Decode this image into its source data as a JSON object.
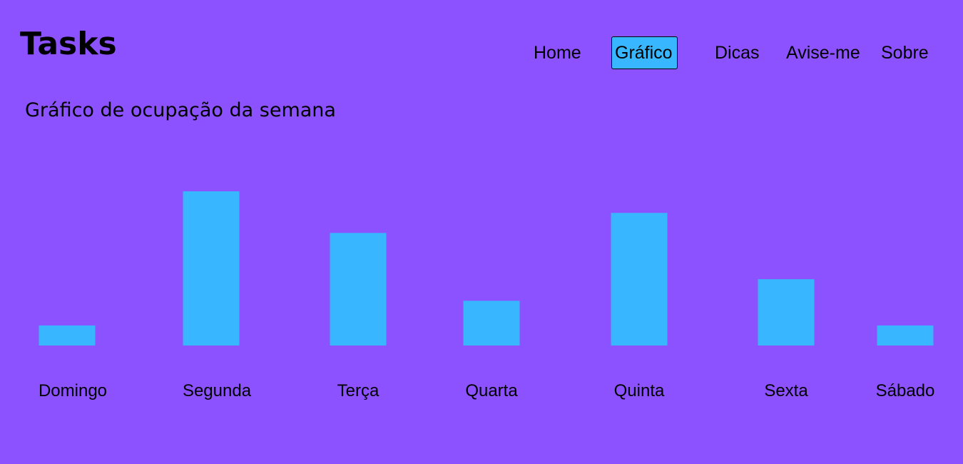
{
  "header": {
    "logo": "Tasks"
  },
  "nav": {
    "items": [
      {
        "label": "Home",
        "active": false
      },
      {
        "label": "Gráfico",
        "active": true
      },
      {
        "label": "Dicas",
        "active": false
      },
      {
        "label": "Avise-me",
        "active": false
      },
      {
        "label": "Sobre",
        "active": false
      }
    ]
  },
  "main": {
    "title": "Gráfico de ocupação da semana"
  },
  "colors": {
    "background": "#8c52ff",
    "bar": "#38b6ff",
    "active_nav": "#38b6ff"
  },
  "chart_data": {
    "type": "bar",
    "categories": [
      "Domingo",
      "Segunda",
      "Terça",
      "Quarta",
      "Quinta",
      "Sexta",
      "Sábado"
    ],
    "values": [
      13,
      100,
      73,
      29,
      86,
      43,
      13
    ],
    "grid": false,
    "legend": "none"
  }
}
